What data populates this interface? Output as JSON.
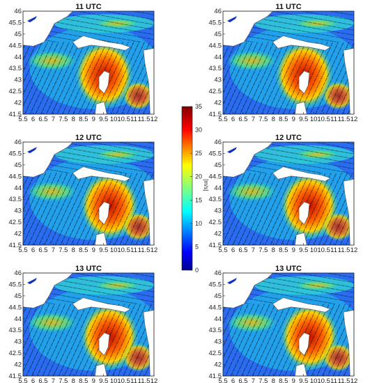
{
  "figure": {
    "panels": [
      {
        "id": "11a",
        "title": "11 UTC"
      },
      {
        "id": "11b",
        "title": "11 UTC"
      },
      {
        "id": "12a",
        "title": "12 UTC"
      },
      {
        "id": "12b",
        "title": "12 UTC"
      },
      {
        "id": "13a",
        "title": "13 UTC"
      },
      {
        "id": "13b",
        "title": "13 UTC"
      }
    ],
    "x_ticks": [
      "5.5",
      "6",
      "6.5",
      "7",
      "7.5",
      "8",
      "8.5",
      "9",
      "9.5",
      "10",
      "10.5",
      "11",
      "11.5",
      "12"
    ],
    "y_ticks": [
      "46",
      "45.5",
      "45",
      "44.5",
      "44",
      "43.5",
      "43",
      "42.5",
      "42",
      "41.5"
    ],
    "colorbar": {
      "ticks": [
        "35",
        "30",
        "25",
        "20",
        "15",
        "10",
        "5",
        "0"
      ],
      "unit": "[m/s]",
      "colormap": [
        "#00008f",
        "#0000ff",
        "#0080ff",
        "#00ffff",
        "#80ff80",
        "#ffff00",
        "#ff8000",
        "#ff0000",
        "#800000"
      ]
    }
  }
}
